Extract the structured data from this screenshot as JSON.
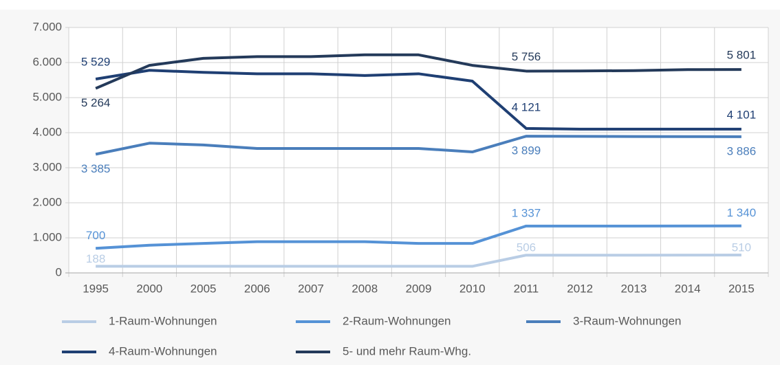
{
  "chart_data": {
    "type": "line",
    "categories": [
      "1995",
      "2000",
      "2005",
      "2006",
      "2007",
      "2008",
      "2009",
      "2010",
      "2011",
      "2012",
      "2013",
      "2014",
      "2015"
    ],
    "series": [
      {
        "name": "1-Raum-Wohnungen",
        "color": "#b9cde5",
        "values": [
          188,
          188,
          188,
          188,
          188,
          188,
          188,
          188,
          506,
          506,
          506,
          508,
          510
        ],
        "value_labels": [
          "188",
          null,
          null,
          null,
          null,
          null,
          null,
          null,
          "506",
          null,
          null,
          null,
          "510"
        ]
      },
      {
        "name": "2-Raum-Wohnungen",
        "color": "#5592d6",
        "values": [
          700,
          790,
          840,
          890,
          890,
          890,
          840,
          840,
          1337,
          1337,
          1337,
          1338,
          1340
        ],
        "value_labels": [
          "700",
          null,
          null,
          null,
          null,
          null,
          null,
          null,
          "1 337",
          null,
          null,
          null,
          "1 340"
        ]
      },
      {
        "name": "3-Raum-Wohnungen",
        "color": "#4a7ebb",
        "values": [
          3385,
          3700,
          3650,
          3550,
          3550,
          3550,
          3550,
          3450,
          3899,
          3895,
          3890,
          3888,
          3886
        ],
        "value_labels": [
          "3 385",
          null,
          null,
          null,
          null,
          null,
          null,
          null,
          "3 899",
          null,
          null,
          null,
          "3 886"
        ]
      },
      {
        "name": "4-Raum-Wohnungen",
        "color": "#1f3f73",
        "values": [
          5529,
          5780,
          5720,
          5680,
          5680,
          5630,
          5680,
          5470,
          4121,
          4100,
          4100,
          4100,
          4101
        ],
        "value_labels": [
          "5 529",
          null,
          null,
          null,
          null,
          null,
          null,
          null,
          "4 121",
          null,
          null,
          null,
          "4 101"
        ]
      },
      {
        "name": "5- und mehr Raum-Whg.",
        "color": "#243a5a",
        "values": [
          5264,
          5920,
          6120,
          6170,
          6170,
          6220,
          6220,
          5920,
          5756,
          5760,
          5770,
          5800,
          5801
        ],
        "value_labels": [
          "5 264",
          null,
          null,
          null,
          null,
          null,
          null,
          null,
          "5 756",
          null,
          null,
          null,
          "5 801"
        ]
      }
    ],
    "ylim": [
      0,
      7000
    ],
    "yticks": [
      0,
      {
        "value": 1000,
        "label": "1.000"
      },
      {
        "value": 2000,
        "label": "2.000"
      },
      {
        "value": 3000,
        "label": "3.000"
      },
      {
        "value": 4000,
        "label": "4.000"
      },
      {
        "value": 5000,
        "label": "5.000"
      },
      {
        "value": 6000,
        "label": "6.000"
      },
      {
        "value": 7000,
        "label": "7.000"
      }
    ],
    "grid": true
  }
}
